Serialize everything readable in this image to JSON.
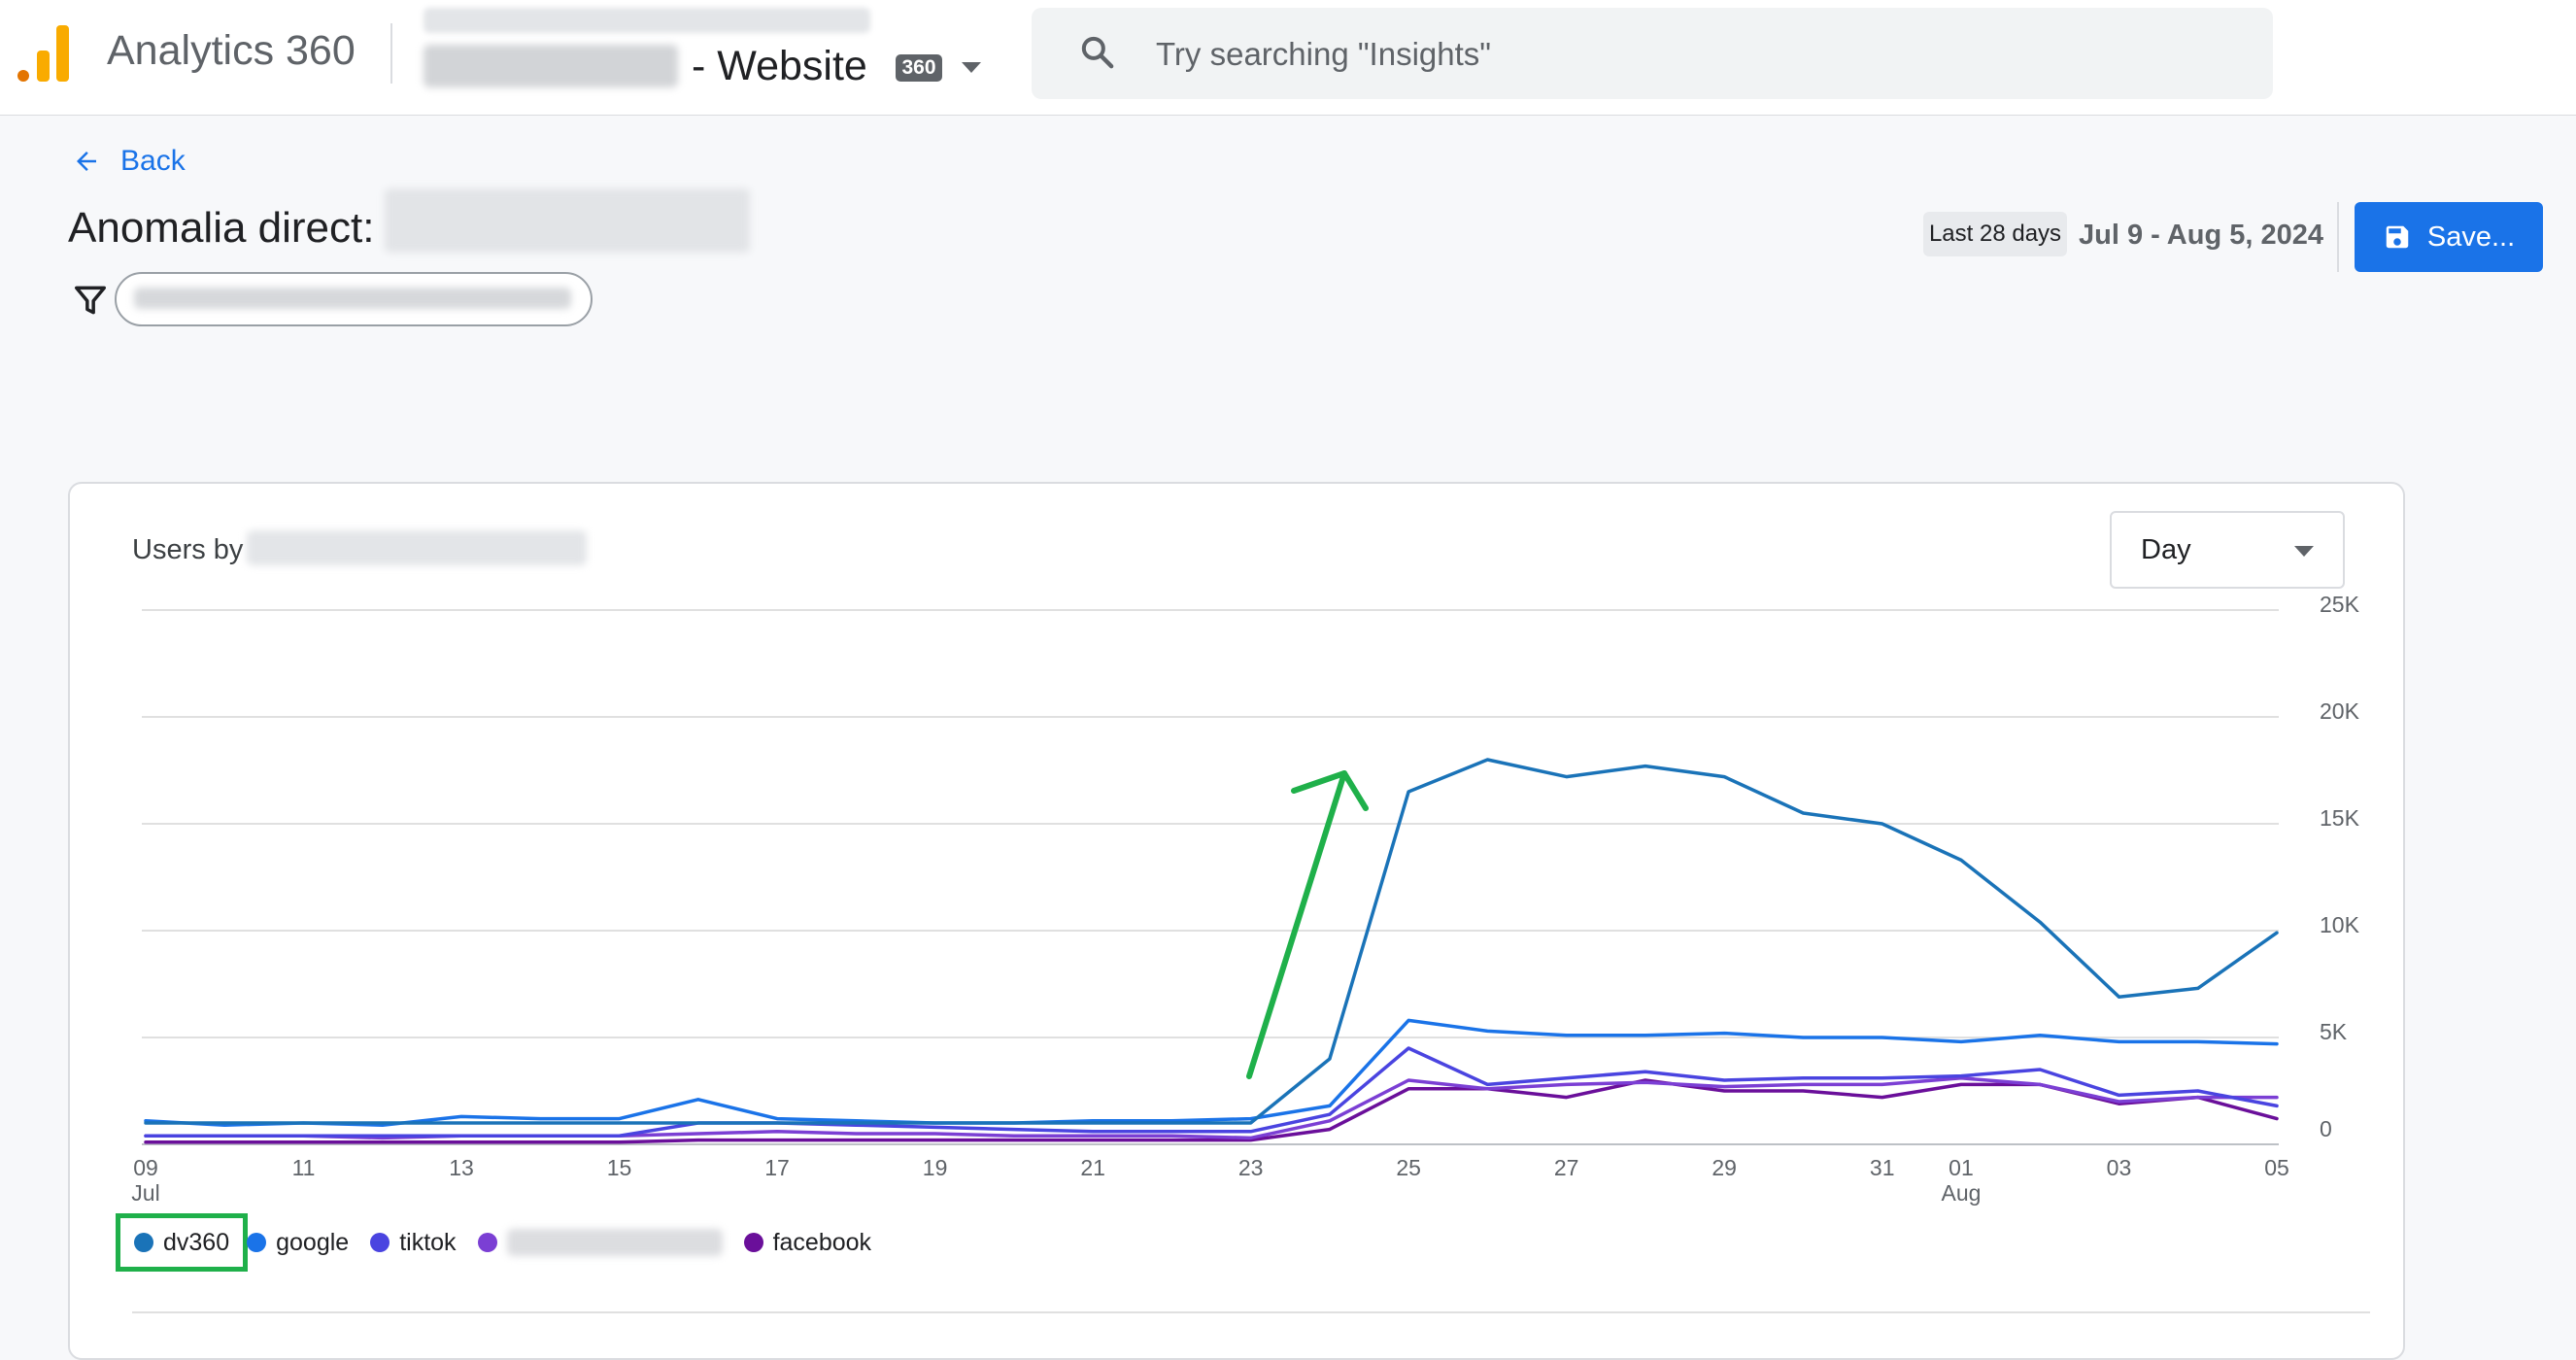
{
  "header": {
    "app_title": "Analytics 360",
    "property_suffix": "- Website",
    "badge": "360",
    "icons": {
      "property": "chevron-down-icon",
      "search": "search-icon"
    }
  },
  "search": {
    "placeholder": "Try searching \"Insights\""
  },
  "nav": {
    "back_label": "Back"
  },
  "page": {
    "title": "Anomalia direct:"
  },
  "date": {
    "label": "Last 28 days",
    "range": "Jul 9 - Aug 5, 2024"
  },
  "toolbar": {
    "save_label": "Save..."
  },
  "card": {
    "title_prefix": "Users by",
    "granularity": "Day"
  },
  "colors": {
    "dv360": "#1a73b8",
    "google": "#1a73e8",
    "tiktok": "#4a44e0",
    "redacted_series": "#7b3fd4",
    "facebook": "#6a0f9a",
    "annotation_arrow": "#1fb04a",
    "highlight_box": "#1fb04a"
  },
  "chart_data": {
    "type": "line",
    "x": [
      "09",
      "10",
      "11",
      "12",
      "13",
      "14",
      "15",
      "16",
      "17",
      "18",
      "19",
      "20",
      "21",
      "22",
      "23",
      "24",
      "25",
      "26",
      "27",
      "28",
      "29",
      "30",
      "31",
      "01",
      "02",
      "03",
      "04",
      "05"
    ],
    "x_tick_labels": [
      {
        "label": "09",
        "sub": "Jul"
      },
      {
        "label": "11",
        "sub": ""
      },
      {
        "label": "13",
        "sub": ""
      },
      {
        "label": "15",
        "sub": ""
      },
      {
        "label": "17",
        "sub": ""
      },
      {
        "label": "19",
        "sub": ""
      },
      {
        "label": "21",
        "sub": ""
      },
      {
        "label": "23",
        "sub": ""
      },
      {
        "label": "25",
        "sub": ""
      },
      {
        "label": "27",
        "sub": ""
      },
      {
        "label": "29",
        "sub": ""
      },
      {
        "label": "31",
        "sub": ""
      },
      {
        "label": "01",
        "sub": "Aug"
      },
      {
        "label": "03",
        "sub": ""
      },
      {
        "label": "05",
        "sub": ""
      }
    ],
    "x_tick_positions": [
      0,
      2,
      4,
      6,
      8,
      10,
      12,
      14,
      16,
      18,
      20,
      22,
      23,
      25,
      27
    ],
    "y_ticks": [
      "0",
      "5K",
      "10K",
      "15K",
      "20K",
      "25K"
    ],
    "y_tick_values": [
      0,
      5000,
      10000,
      15000,
      20000,
      25000
    ],
    "ylim": [
      0,
      25000
    ],
    "grid": true,
    "legend_position": "bottom-left",
    "series": [
      {
        "name": "dv360",
        "color": "#1a73b8",
        "values": [
          1000,
          1000,
          1000,
          1000,
          1000,
          1000,
          1000,
          1000,
          1000,
          1000,
          1000,
          1000,
          1000,
          1000,
          1000,
          4000,
          16500,
          18000,
          17200,
          17700,
          17200,
          15500,
          15000,
          13300,
          10400,
          6900,
          7300,
          9900
        ]
      },
      {
        "name": "google",
        "color": "#1a73e8",
        "values": [
          1100,
          900,
          1000,
          900,
          1300,
          1200,
          1200,
          2100,
          1200,
          1100,
          1000,
          1000,
          1100,
          1100,
          1200,
          1800,
          5800,
          5300,
          5100,
          5100,
          5200,
          5000,
          5000,
          4800,
          5100,
          4800,
          4800,
          4700
        ]
      },
      {
        "name": "tiktok",
        "color": "#4a44e0",
        "values": [
          400,
          400,
          400,
          400,
          400,
          400,
          400,
          1000,
          1000,
          900,
          800,
          700,
          600,
          600,
          600,
          1400,
          4500,
          2800,
          3100,
          3400,
          3000,
          3100,
          3100,
          3200,
          3500,
          2300,
          2500,
          1800
        ]
      },
      {
        "name": "",
        "color": "#7b3fd4",
        "values": [
          400,
          400,
          400,
          300,
          400,
          400,
          400,
          500,
          600,
          500,
          500,
          400,
          400,
          400,
          300,
          1100,
          3000,
          2600,
          2800,
          2900,
          2700,
          2800,
          2800,
          3100,
          2800,
          2000,
          2200,
          2200
        ]
      },
      {
        "name": "facebook",
        "color": "#6a0f9a",
        "values": [
          100,
          100,
          100,
          100,
          100,
          100,
          100,
          200,
          200,
          200,
          200,
          200,
          200,
          200,
          200,
          700,
          2600,
          2600,
          2200,
          3000,
          2500,
          2500,
          2200,
          2800,
          2800,
          1900,
          2200,
          1200
        ]
      }
    ]
  }
}
